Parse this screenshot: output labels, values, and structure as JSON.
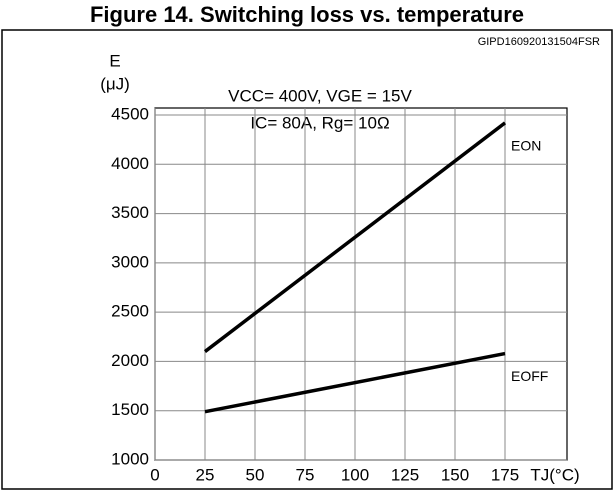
{
  "chart_data": {
    "type": "line",
    "title": "Figure 14. Switching loss vs. temperature",
    "subtitle": "GIPD160920131504FSR",
    "ylabel": [
      "E",
      "(μJ)"
    ],
    "xlabel": "TJ(°C)",
    "annotations": [
      "VCC= 400V, VGE = 15V",
      "IC= 80A, Rg= 10Ω"
    ],
    "x": [
      25,
      175
    ],
    "series": [
      {
        "name": "EON",
        "color": "#000000",
        "values": [
          2100,
          4420
        ]
      },
      {
        "name": "EOFF",
        "color": "#000000",
        "values": [
          1490,
          2080
        ]
      }
    ],
    "xlim": [
      0,
      206
    ],
    "xticks": [
      0,
      25,
      50,
      75,
      100,
      125,
      150,
      175
    ],
    "ylim": [
      1000,
      4500
    ],
    "yticks": [
      1000,
      1500,
      2000,
      2500,
      3000,
      3500,
      4000,
      4500
    ],
    "grid": true
  }
}
